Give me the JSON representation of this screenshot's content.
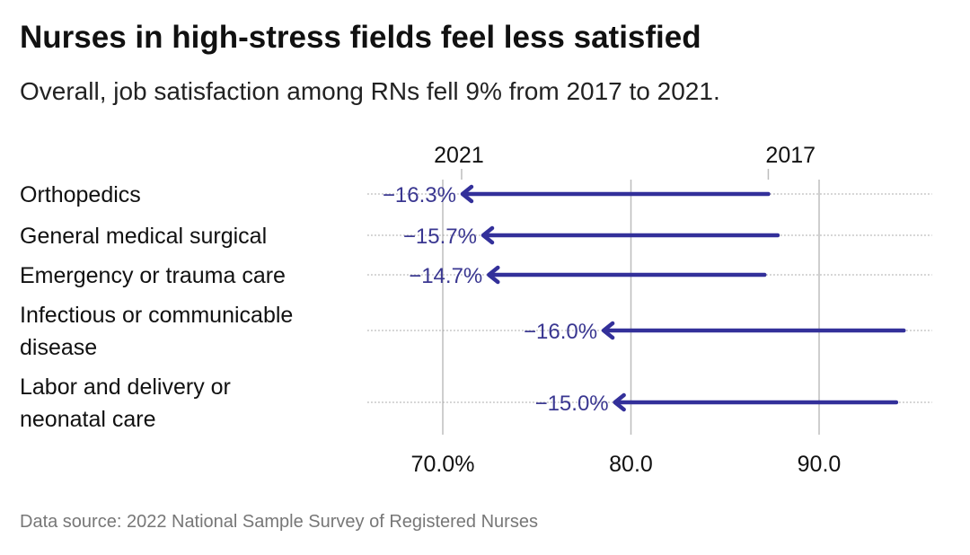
{
  "title": "Nurses in high-stress fields feel less satisfied",
  "subtitle": "Overall, job satisfaction among RNs fell 9% from 2017 to 2021.",
  "source": "Data source: 2022 National Sample Survey of Registered Nurses",
  "colors": {
    "arrow": "#33309a",
    "grid": "#bdbdbd",
    "dots": "#aaaaaa"
  },
  "chart_data": {
    "type": "arrow",
    "title": "Nurses in high-stress fields feel less satisfied",
    "subtitle": "Overall, job satisfaction among RNs fell 9% from 2017 to 2021.",
    "series_labels": [
      "2021",
      "2017"
    ],
    "xlim": [
      66,
      96
    ],
    "x_ticks": [
      70,
      80,
      90
    ],
    "x_tick_labels": [
      "70.0%",
      "80.0",
      "90.0"
    ],
    "grid": true,
    "rows": [
      {
        "category": [
          "Orthopedics"
        ],
        "y2017": 87.3,
        "y2021": 71.0,
        "label": "−16.3%"
      },
      {
        "category": [
          "General medical surgical"
        ],
        "y2017": 87.8,
        "y2021": 72.1,
        "label": "−15.7%"
      },
      {
        "category": [
          "Emergency or trauma care"
        ],
        "y2017": 87.1,
        "y2021": 72.4,
        "label": "−14.7%"
      },
      {
        "category": [
          "Infectious or communicable",
          "disease"
        ],
        "y2017": 94.5,
        "y2021": 78.5,
        "label": "−16.0%"
      },
      {
        "category": [
          "Labor and delivery or",
          "neonatal care"
        ],
        "y2017": 94.1,
        "y2021": 79.1,
        "label": "−15.0%"
      }
    ]
  }
}
